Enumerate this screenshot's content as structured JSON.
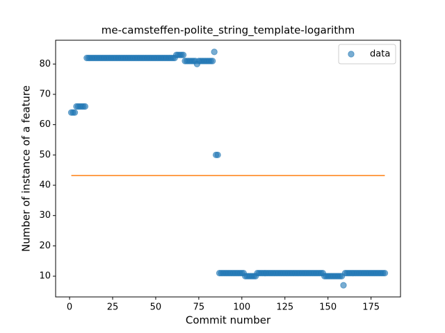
{
  "chart_data": {
    "type": "scatter",
    "title": "me-camsteffen-polite_string_template-logarithm",
    "xlabel": "Commit number",
    "ylabel": "Number of instance of a feature",
    "xlim": [
      -8.1,
      192.1
    ],
    "ylim": [
      3.15,
      87.85
    ],
    "xticks": [
      0,
      25,
      50,
      75,
      100,
      125,
      150,
      175
    ],
    "yticks": [
      10,
      20,
      30,
      40,
      50,
      60,
      70,
      80
    ],
    "legend": "upper right",
    "series": [
      {
        "name": "data",
        "color": "#1f77b4",
        "x": [
          1,
          2,
          3,
          4,
          5,
          6,
          7,
          8,
          9,
          10,
          11,
          12,
          13,
          14,
          15,
          16,
          17,
          18,
          19,
          20,
          21,
          22,
          23,
          24,
          25,
          26,
          27,
          28,
          29,
          30,
          31,
          32,
          33,
          34,
          35,
          36,
          37,
          38,
          39,
          40,
          41,
          42,
          43,
          44,
          45,
          46,
          47,
          48,
          49,
          50,
          51,
          52,
          53,
          54,
          55,
          56,
          57,
          58,
          59,
          60,
          61,
          62,
          63,
          64,
          65,
          66,
          67,
          68,
          69,
          70,
          71,
          72,
          73,
          74,
          75,
          76,
          77,
          78,
          79,
          80,
          81,
          82,
          83,
          84,
          85,
          86,
          87,
          88,
          89,
          90,
          91,
          92,
          93,
          94,
          95,
          96,
          97,
          98,
          99,
          100,
          101,
          102,
          103,
          104,
          105,
          106,
          107,
          108,
          109,
          110,
          111,
          112,
          113,
          114,
          115,
          116,
          117,
          118,
          119,
          120,
          121,
          122,
          123,
          124,
          125,
          126,
          127,
          128,
          129,
          130,
          131,
          132,
          133,
          134,
          135,
          136,
          137,
          138,
          139,
          140,
          141,
          142,
          143,
          144,
          145,
          146,
          147,
          148,
          149,
          150,
          151,
          152,
          153,
          154,
          155,
          156,
          157,
          158,
          159,
          160,
          161,
          162,
          163,
          164,
          165,
          166,
          167,
          168,
          169,
          170,
          171,
          172,
          173,
          174,
          175,
          176,
          177,
          178,
          179,
          180,
          181,
          182,
          183
        ],
        "values": [
          64,
          64,
          64,
          66,
          66,
          66,
          66,
          66,
          66,
          82,
          82,
          82,
          82,
          82,
          82,
          82,
          82,
          82,
          82,
          82,
          82,
          82,
          82,
          82,
          82,
          82,
          82,
          82,
          82,
          82,
          82,
          82,
          82,
          82,
          82,
          82,
          82,
          82,
          82,
          82,
          82,
          82,
          82,
          82,
          82,
          82,
          82,
          82,
          82,
          82,
          82,
          82,
          82,
          82,
          82,
          82,
          82,
          82,
          82,
          82,
          82,
          83,
          83,
          83,
          83,
          83,
          81,
          81,
          81,
          81,
          81,
          81,
          81,
          80,
          81,
          81,
          81,
          81,
          81,
          81,
          81,
          81,
          81,
          84,
          50,
          50,
          11,
          11,
          11,
          11,
          11,
          11,
          11,
          11,
          11,
          11,
          11,
          11,
          11,
          11,
          11,
          10,
          10,
          10,
          10,
          10,
          10,
          10,
          11,
          11,
          11,
          11,
          11,
          11,
          11,
          11,
          11,
          11,
          11,
          11,
          11,
          11,
          11,
          11,
          11,
          11,
          11,
          11,
          11,
          11,
          11,
          11,
          11,
          11,
          11,
          11,
          11,
          11,
          11,
          11,
          11,
          11,
          11,
          11,
          11,
          11,
          11,
          10,
          10,
          10,
          10,
          10,
          10,
          10,
          10,
          10,
          10,
          10,
          7,
          11,
          11,
          11,
          11,
          11,
          11,
          11,
          11,
          11,
          11,
          11,
          11,
          11,
          11,
          11,
          11,
          11,
          11,
          11,
          11,
          11,
          11,
          11,
          11
        ]
      },
      {
        "color": "#ff7f0e",
        "x": [
          1,
          183
        ],
        "values": [
          43.2,
          43.2
        ]
      }
    ]
  }
}
